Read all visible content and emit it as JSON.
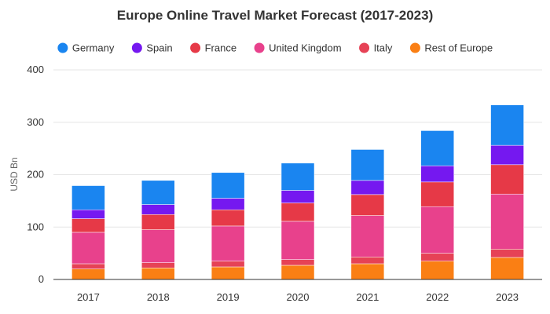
{
  "chart_data": {
    "type": "bar",
    "stacked": true,
    "title": "Europe Online Travel Market Forecast (2017-2023)",
    "xlabel": "",
    "ylabel": "USD Bn",
    "ylim": [
      0,
      400
    ],
    "yticks": [
      0,
      100,
      200,
      300,
      400
    ],
    "grid": true,
    "legend_position": "top",
    "categories": [
      "2017",
      "2018",
      "2019",
      "2020",
      "2021",
      "2022",
      "2023"
    ],
    "series": [
      {
        "name": "Rest of Europe",
        "color": "#fa7f14",
        "values": [
          20,
          22,
          24,
          27,
          30,
          35,
          42
        ]
      },
      {
        "name": "Italy",
        "color": "#e64256",
        "values": [
          10,
          10,
          11,
          11,
          13,
          15,
          16
        ]
      },
      {
        "name": "United Kingdom",
        "color": "#e8418c",
        "values": [
          60,
          63,
          67,
          73,
          79,
          89,
          105
        ]
      },
      {
        "name": "France",
        "color": "#e63947",
        "values": [
          26,
          29,
          31,
          35,
          40,
          47,
          56
        ]
      },
      {
        "name": "Spain",
        "color": "#7518f0",
        "values": [
          17,
          19,
          22,
          24,
          27,
          31,
          37
        ]
      },
      {
        "name": "Germany",
        "color": "#1a85f0",
        "values": [
          46,
          46,
          49,
          52,
          59,
          67,
          77
        ]
      }
    ],
    "legend_order": [
      "Germany",
      "Spain",
      "France",
      "United Kingdom",
      "Italy",
      "Rest of Europe"
    ]
  }
}
